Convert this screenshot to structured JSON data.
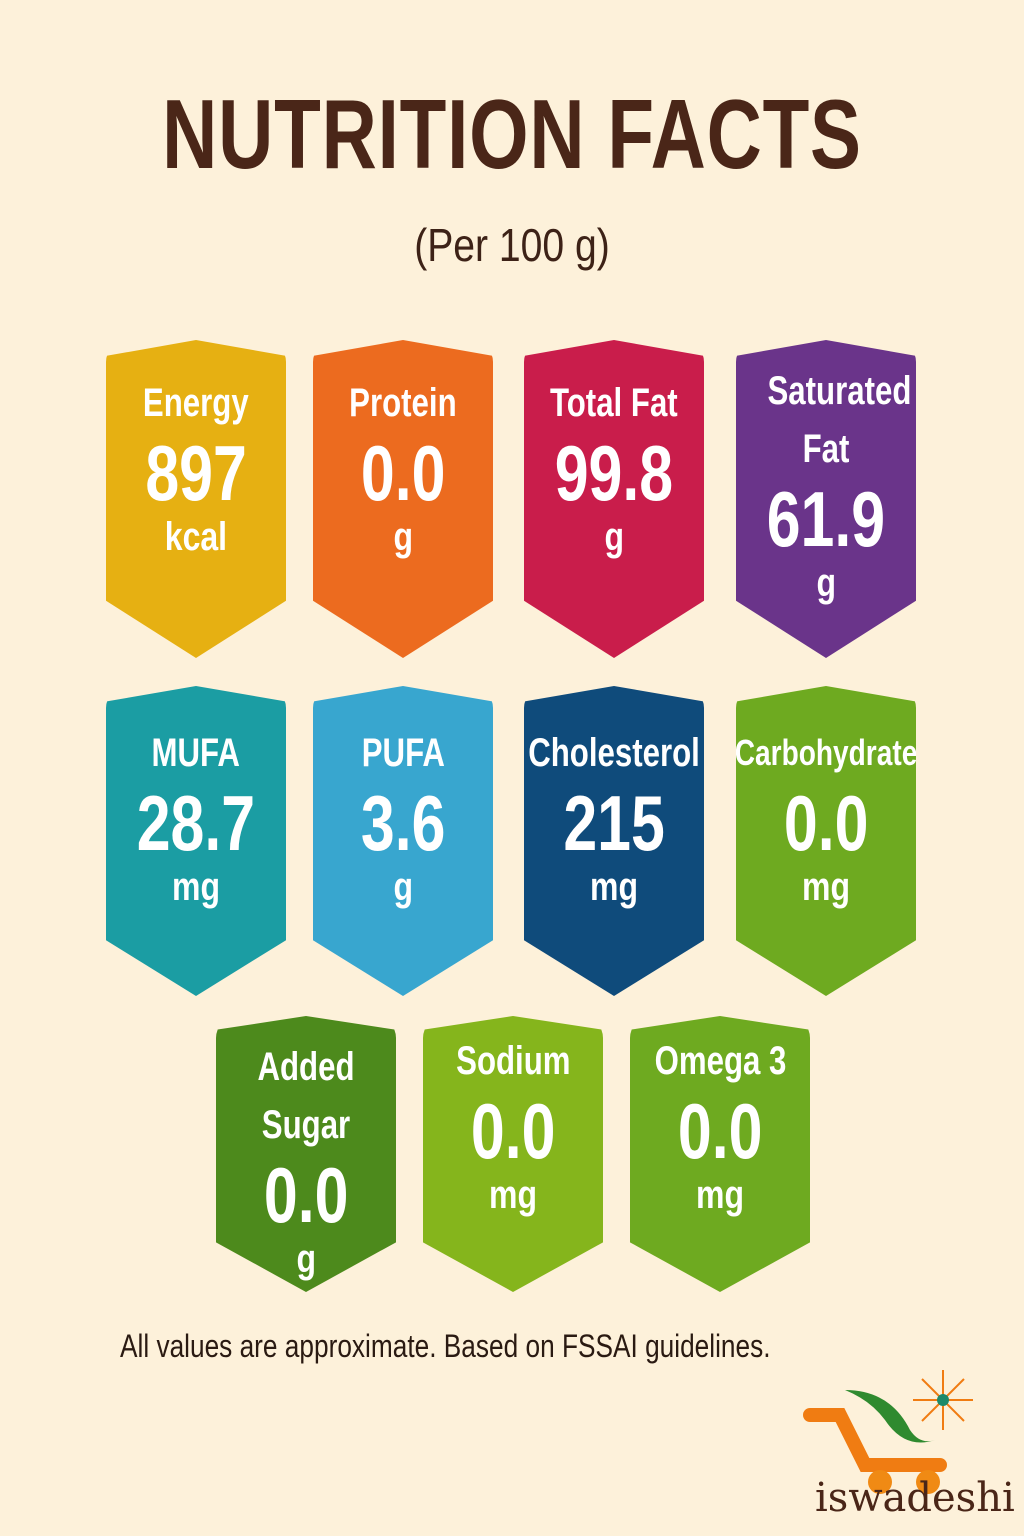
{
  "header": {
    "title": "NUTRITION FACTS",
    "subtitle": "(Per 100 g)"
  },
  "nutrients": [
    {
      "label": "Energy",
      "value": "897",
      "unit": "kcal",
      "color": "#e6b012"
    },
    {
      "label": "Protein",
      "value": "0.0",
      "unit": "g",
      "color": "#ec6b1f"
    },
    {
      "label": "Total Fat",
      "value": "99.8",
      "unit": "g",
      "color": "#c91d4b"
    },
    {
      "label": "Saturated Fat",
      "value": "61.9",
      "unit": "g",
      "color": "#6a348a"
    },
    {
      "label": "MUFA",
      "value": "28.7",
      "unit": "mg",
      "color": "#1b9da3"
    },
    {
      "label": "PUFA",
      "value": "3.6",
      "unit": "g",
      "color": "#38a6cf"
    },
    {
      "label": "Cholesterol",
      "value": "215",
      "unit": "mg",
      "color": "#0f4b7b"
    },
    {
      "label": "Carbohydrate",
      "value": "0.0",
      "unit": "mg",
      "color": "#6eaa20"
    },
    {
      "label": "Added Sugar",
      "value": "0.0",
      "unit": "g",
      "color": "#4d8a1c"
    },
    {
      "label": "Sodium",
      "value": "0.0",
      "unit": "mg",
      "color": "#85b51c"
    },
    {
      "label": "Omega 3",
      "value": "0.0",
      "unit": "mg",
      "color": "#6eaa20"
    }
  ],
  "footer": {
    "note": "All values are approximate. Based on FSSAI guidelines.",
    "brand": "iswadeshi"
  }
}
